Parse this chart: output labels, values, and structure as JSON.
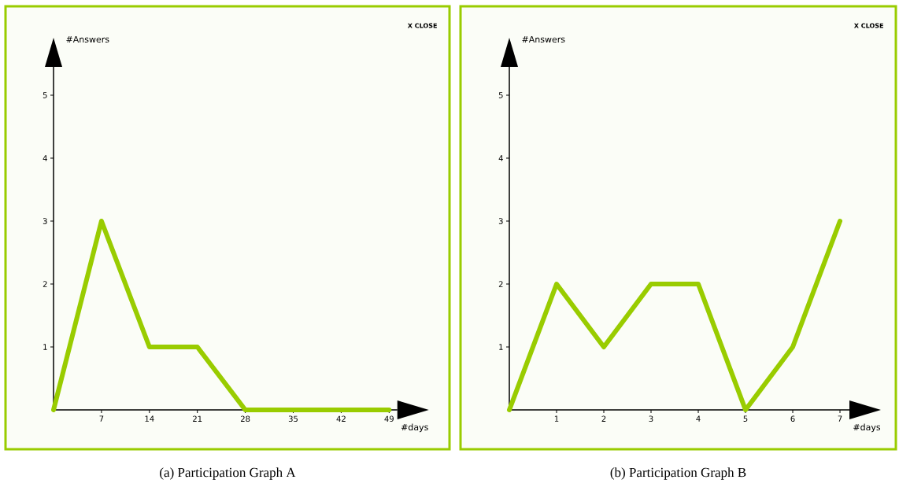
{
  "chart_data": [
    {
      "type": "line",
      "title": "(a) Participation Graph A",
      "xlabel": "#days",
      "ylabel": "#Answers",
      "annotations": [
        "X CLOSE"
      ],
      "x": [
        0,
        7,
        14,
        21,
        28,
        35,
        42,
        49
      ],
      "values": [
        0,
        3,
        1,
        1,
        0,
        0,
        0,
        0
      ],
      "color": "#99cc00",
      "xlim": [
        0,
        50.2
      ],
      "ylim": [
        0,
        5.45
      ],
      "xticks": [
        7,
        14,
        21,
        28,
        35,
        42,
        49
      ],
      "yticks": [
        1,
        2,
        3,
        4,
        5
      ],
      "marker": "none",
      "line_style": "solid"
    },
    {
      "type": "line",
      "title": "(b) Participation Graph B",
      "xlabel": "#days",
      "ylabel": "#Answers",
      "annotations": [
        "X CLOSE"
      ],
      "x": [
        0,
        1,
        2,
        3,
        4,
        5,
        6,
        7
      ],
      "values": [
        0,
        2,
        1,
        2,
        2,
        0,
        1,
        3
      ],
      "color": "#99cc00",
      "xlim": [
        0,
        7.2
      ],
      "ylim": [
        0,
        5.45
      ],
      "xticks": [
        1,
        2,
        3,
        4,
        5,
        6,
        7
      ],
      "yticks": [
        1,
        2,
        3,
        4,
        5
      ],
      "marker": "none",
      "line_style": "solid"
    }
  ]
}
